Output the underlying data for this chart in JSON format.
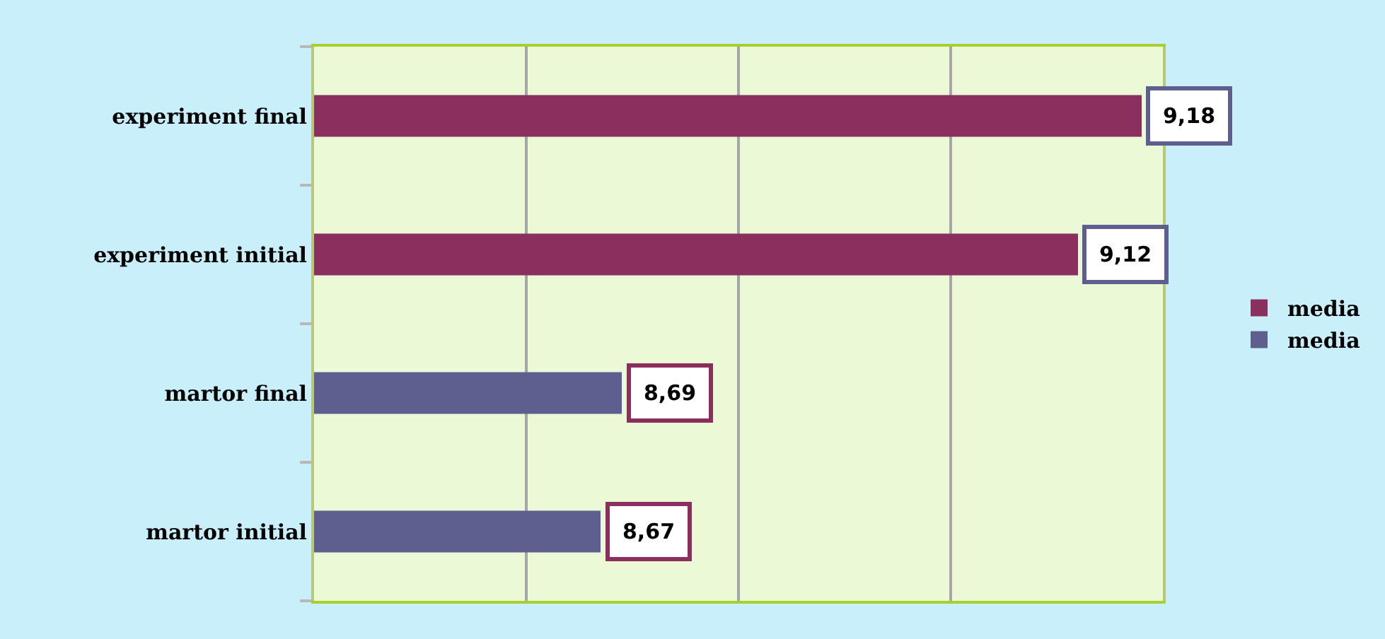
{
  "chart_data": {
    "type": "bar",
    "orientation": "horizontal",
    "categories": [
      "experiment final",
      "experiment initial",
      "martor final",
      "martor initial"
    ],
    "series": [
      {
        "name": "media",
        "color": "#8b2f5e",
        "values": [
          9.18,
          9.12,
          null,
          null
        ],
        "value_labels": [
          "9,18",
          "9,12",
          null,
          null
        ]
      },
      {
        "name": "media",
        "color": "#5f5f8f",
        "values": [
          null,
          null,
          8.69,
          8.67
        ],
        "value_labels": [
          null,
          null,
          "8,69",
          "8,67"
        ]
      }
    ],
    "xlim": [
      8.4,
      9.2
    ],
    "xticks": [
      {
        "value": 8.4,
        "label": null
      },
      {
        "value": 8.6,
        "label": null
      },
      {
        "value": 8.8,
        "label": null
      },
      {
        "value": 9.0,
        "label": null
      },
      {
        "value": 9.2,
        "label": null
      }
    ],
    "grid": "x",
    "legend": "right",
    "tick_labels": "y"
  }
}
